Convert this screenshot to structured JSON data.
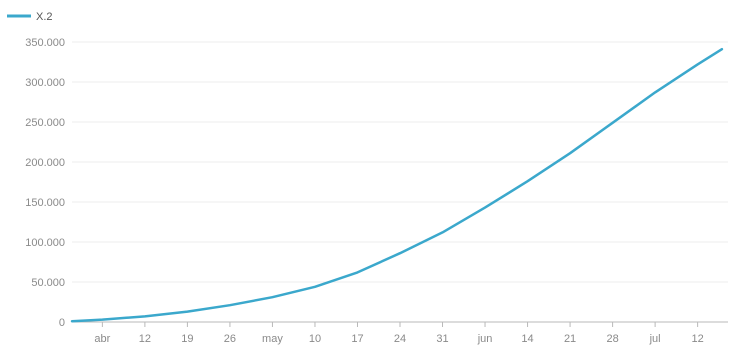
{
  "chart_data": {
    "type": "line",
    "title": "",
    "xlabel": "",
    "ylabel": "",
    "legend": {
      "position": "top-left",
      "entries": [
        "X.2"
      ]
    },
    "grid": {
      "y": true,
      "x": false
    },
    "colors": {
      "series": "#3ba8cc",
      "grid": "#ededed",
      "axis": "#b9b9b9",
      "tick_text": "#8a8a8a"
    },
    "ylim": [
      0,
      350000
    ],
    "yticks": [
      {
        "value": 0,
        "label": "0"
      },
      {
        "value": 50000,
        "label": "50.000"
      },
      {
        "value": 100000,
        "label": "100.000"
      },
      {
        "value": 150000,
        "label": "150.000"
      },
      {
        "value": 200000,
        "label": "200.000"
      },
      {
        "value": 250000,
        "label": "250.000"
      },
      {
        "value": 300000,
        "label": "300.000"
      },
      {
        "value": 350000,
        "label": "350.000"
      }
    ],
    "xlim": [
      "2020-03-31",
      "2020-07-17"
    ],
    "xticks": [
      {
        "value": "2020-04-05",
        "label": "abr"
      },
      {
        "value": "2020-04-12",
        "label": "12"
      },
      {
        "value": "2020-04-19",
        "label": "19"
      },
      {
        "value": "2020-04-26",
        "label": "26"
      },
      {
        "value": "2020-05-03",
        "label": "may"
      },
      {
        "value": "2020-05-10",
        "label": "10"
      },
      {
        "value": "2020-05-17",
        "label": "17"
      },
      {
        "value": "2020-05-24",
        "label": "24"
      },
      {
        "value": "2020-05-31",
        "label": "31"
      },
      {
        "value": "2020-06-07",
        "label": "jun"
      },
      {
        "value": "2020-06-14",
        "label": "14"
      },
      {
        "value": "2020-06-21",
        "label": "21"
      },
      {
        "value": "2020-06-28",
        "label": "28"
      },
      {
        "value": "2020-07-05",
        "label": "jul"
      },
      {
        "value": "2020-07-12",
        "label": "12"
      }
    ],
    "series": [
      {
        "name": "X.2",
        "points": [
          {
            "x": "2020-03-31",
            "y": 1000
          },
          {
            "x": "2020-04-05",
            "y": 3000
          },
          {
            "x": "2020-04-12",
            "y": 7000
          },
          {
            "x": "2020-04-19",
            "y": 13000
          },
          {
            "x": "2020-04-26",
            "y": 21000
          },
          {
            "x": "2020-05-03",
            "y": 31000
          },
          {
            "x": "2020-05-10",
            "y": 44000
          },
          {
            "x": "2020-05-17",
            "y": 62000
          },
          {
            "x": "2020-05-24",
            "y": 86000
          },
          {
            "x": "2020-05-31",
            "y": 112000
          },
          {
            "x": "2020-06-07",
            "y": 143000
          },
          {
            "x": "2020-06-14",
            "y": 176000
          },
          {
            "x": "2020-06-21",
            "y": 211000
          },
          {
            "x": "2020-06-28",
            "y": 249000
          },
          {
            "x": "2020-07-05",
            "y": 287000
          },
          {
            "x": "2020-07-12",
            "y": 322000
          },
          {
            "x": "2020-07-16",
            "y": 341000
          }
        ]
      }
    ]
  }
}
